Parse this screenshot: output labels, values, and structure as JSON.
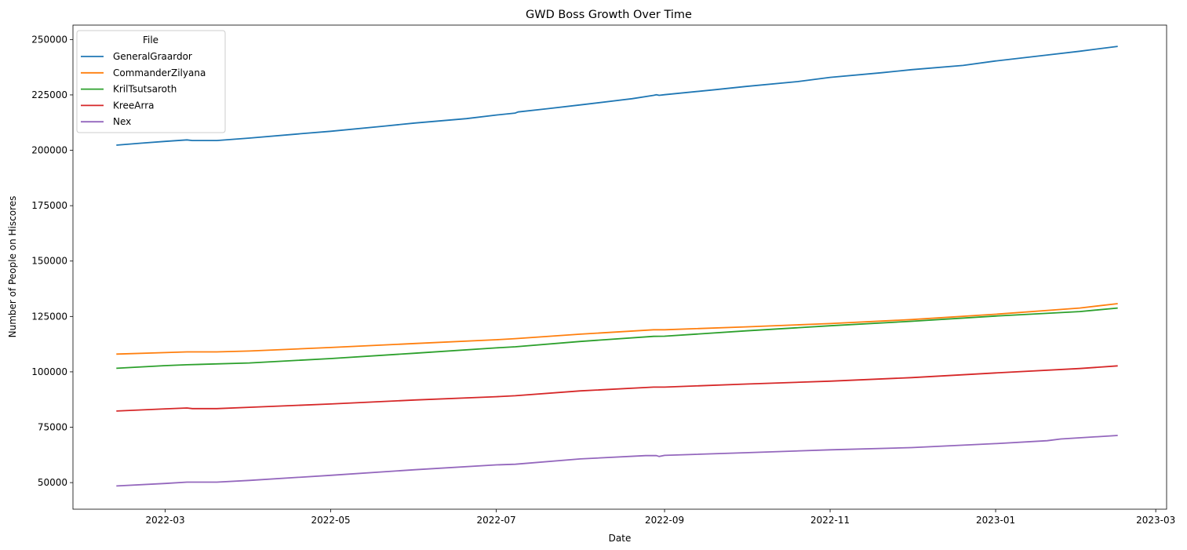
{
  "chart_data": {
    "type": "line",
    "title": "GWD Boss Growth Over Time",
    "xlabel": "Date",
    "ylabel": "Number of People on Hiscores",
    "xlim": [
      "2022-01-26",
      "2023-03-05"
    ],
    "ylim": [
      38000,
      256500
    ],
    "x_ticks": [
      "2022-03-01",
      "2022-05-01",
      "2022-07-01",
      "2022-09-01",
      "2022-11-01",
      "2023-01-01",
      "2023-03-01"
    ],
    "x_tick_labels": [
      "2022-03",
      "2022-05",
      "2022-07",
      "2022-09",
      "2022-11",
      "2023-01",
      "2023-03"
    ],
    "y_ticks": [
      50000,
      75000,
      100000,
      125000,
      150000,
      175000,
      200000,
      225000,
      250000
    ],
    "y_tick_labels": [
      "50000",
      "75000",
      "100000",
      "125000",
      "150000",
      "175000",
      "200000",
      "225000",
      "250000"
    ],
    "grid": false,
    "legend": {
      "title": "File",
      "placement": "top-left"
    },
    "series": [
      {
        "name": "GeneralGraardor",
        "color": "#1f77b4",
        "points": [
          [
            "2022-02-11",
            202300
          ],
          [
            "2022-02-20",
            203200
          ],
          [
            "2022-03-01",
            204000
          ],
          [
            "2022-03-09",
            204700
          ],
          [
            "2022-03-11",
            204400
          ],
          [
            "2022-03-20",
            204400
          ],
          [
            "2022-04-01",
            205500
          ],
          [
            "2022-04-20",
            207500
          ],
          [
            "2022-05-01",
            208600
          ],
          [
            "2022-05-20",
            210800
          ],
          [
            "2022-06-01",
            212300
          ],
          [
            "2022-06-20",
            214300
          ],
          [
            "2022-07-01",
            215900
          ],
          [
            "2022-07-08",
            216800
          ],
          [
            "2022-07-09",
            217300
          ],
          [
            "2022-07-20",
            218800
          ],
          [
            "2022-08-01",
            220500
          ],
          [
            "2022-08-20",
            223300
          ],
          [
            "2022-08-28",
            224800
          ],
          [
            "2022-08-29",
            225100
          ],
          [
            "2022-08-30",
            224800
          ],
          [
            "2022-09-01",
            225100
          ],
          [
            "2022-09-20",
            227400
          ],
          [
            "2022-10-01",
            228800
          ],
          [
            "2022-10-20",
            231000
          ],
          [
            "2022-11-01",
            232900
          ],
          [
            "2022-11-20",
            235000
          ],
          [
            "2022-12-01",
            236400
          ],
          [
            "2022-12-20",
            238300
          ],
          [
            "2023-01-01",
            240300
          ],
          [
            "2023-01-20",
            243000
          ],
          [
            "2023-02-01",
            244700
          ],
          [
            "2023-02-15",
            246900
          ]
        ]
      },
      {
        "name": "CommanderZilyana",
        "color": "#ff7f0e",
        "points": [
          [
            "2022-02-11",
            108000
          ],
          [
            "2022-03-01",
            108700
          ],
          [
            "2022-03-09",
            109000
          ],
          [
            "2022-03-20",
            109000
          ],
          [
            "2022-04-01",
            109400
          ],
          [
            "2022-05-01",
            111000
          ],
          [
            "2022-06-01",
            112800
          ],
          [
            "2022-07-01",
            114500
          ],
          [
            "2022-07-08",
            115000
          ],
          [
            "2022-08-01",
            117000
          ],
          [
            "2022-08-28",
            119000
          ],
          [
            "2022-09-01",
            119000
          ],
          [
            "2022-10-01",
            120300
          ],
          [
            "2022-11-01",
            121800
          ],
          [
            "2022-12-01",
            123600
          ],
          [
            "2023-01-01",
            126000
          ],
          [
            "2023-02-01",
            128800
          ],
          [
            "2023-02-15",
            130800
          ]
        ]
      },
      {
        "name": "KrilTsutsaroth",
        "color": "#2ca02c",
        "points": [
          [
            "2022-02-11",
            101600
          ],
          [
            "2022-03-01",
            102800
          ],
          [
            "2022-03-09",
            103200
          ],
          [
            "2022-04-01",
            104000
          ],
          [
            "2022-05-01",
            106000
          ],
          [
            "2022-06-01",
            108400
          ],
          [
            "2022-07-01",
            110800
          ],
          [
            "2022-07-08",
            111300
          ],
          [
            "2022-08-01",
            113700
          ],
          [
            "2022-08-28",
            116000
          ],
          [
            "2022-09-01",
            116100
          ],
          [
            "2022-10-01",
            118500
          ],
          [
            "2022-11-01",
            120800
          ],
          [
            "2022-12-01",
            122800
          ],
          [
            "2023-01-01",
            125200
          ],
          [
            "2023-02-01",
            127200
          ],
          [
            "2023-02-15",
            128800
          ]
        ]
      },
      {
        "name": "KreeArra",
        "color": "#d62728",
        "points": [
          [
            "2022-02-11",
            82300
          ],
          [
            "2022-03-01",
            83300
          ],
          [
            "2022-03-09",
            83700
          ],
          [
            "2022-03-11",
            83400
          ],
          [
            "2022-03-20",
            83400
          ],
          [
            "2022-04-01",
            84000
          ],
          [
            "2022-05-01",
            85500
          ],
          [
            "2022-06-01",
            87300
          ],
          [
            "2022-07-01",
            88800
          ],
          [
            "2022-07-08",
            89200
          ],
          [
            "2022-08-01",
            91400
          ],
          [
            "2022-08-28",
            93100
          ],
          [
            "2022-09-01",
            93100
          ],
          [
            "2022-10-01",
            94500
          ],
          [
            "2022-11-01",
            95800
          ],
          [
            "2022-12-01",
            97400
          ],
          [
            "2023-01-01",
            99500
          ],
          [
            "2023-02-01",
            101500
          ],
          [
            "2023-02-15",
            102700
          ]
        ]
      },
      {
        "name": "Nex",
        "color": "#9467bd",
        "points": [
          [
            "2022-02-11",
            48500
          ],
          [
            "2022-03-01",
            49600
          ],
          [
            "2022-03-09",
            50200
          ],
          [
            "2022-03-20",
            50200
          ],
          [
            "2022-04-01",
            51000
          ],
          [
            "2022-05-01",
            53300
          ],
          [
            "2022-06-01",
            55800
          ],
          [
            "2022-07-01",
            58000
          ],
          [
            "2022-07-08",
            58300
          ],
          [
            "2022-08-01",
            60700
          ],
          [
            "2022-08-25",
            62200
          ],
          [
            "2022-08-29",
            62200
          ],
          [
            "2022-08-30",
            61800
          ],
          [
            "2022-09-01",
            62300
          ],
          [
            "2022-10-01",
            63500
          ],
          [
            "2022-11-01",
            64800
          ],
          [
            "2022-12-01",
            65800
          ],
          [
            "2023-01-01",
            67600
          ],
          [
            "2023-01-20",
            68900
          ],
          [
            "2023-01-25",
            69700
          ],
          [
            "2023-02-15",
            71300
          ]
        ]
      }
    ]
  }
}
